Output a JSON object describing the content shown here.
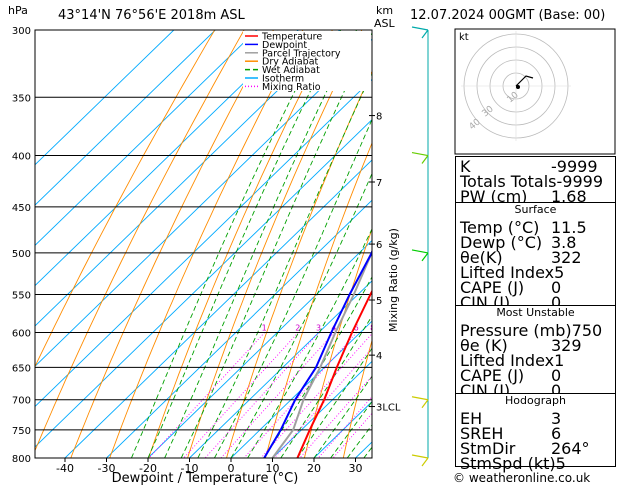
{
  "header": {
    "location": "43°14'N 76°56'E 2018m ASL",
    "hpa_label": "hPa",
    "km_label": "km",
    "asl_label": "ASL",
    "datetime": "12.07.2024 00GMT (Base: 00)"
  },
  "chart_data": {
    "type": "skew-t",
    "xlabel": "Dewpoint / Temperature (°C)",
    "ylabel_right": "Mixing Ratio (g/kg)",
    "pressure_levels": [
      300,
      350,
      400,
      450,
      500,
      550,
      600,
      650,
      700,
      750,
      800
    ],
    "pressure_range": [
      300,
      800
    ],
    "temperature_ticks": [
      -40,
      -30,
      -20,
      -10,
      0,
      10,
      20,
      30
    ],
    "km_ticks": [
      {
        "label": "8",
        "p": 365
      },
      {
        "label": "7",
        "p": 425
      },
      {
        "label": "6",
        "p": 490
      },
      {
        "label": "5",
        "p": 557
      },
      {
        "label": "4",
        "p": 632
      },
      {
        "label": "3LCL",
        "p": 711
      }
    ],
    "mixing_ratio_lines": [
      1,
      2,
      3,
      4,
      6,
      8,
      10,
      15,
      20,
      25
    ],
    "mixing_ratio_label_p": 600,
    "legend": [
      "Temperature",
      "Dewpoint",
      "Parcel Trajectory",
      "Dry Adiabat",
      "Wet Adiabat",
      "Isotherm",
      "Mixing Ratio"
    ],
    "legend_colors": [
      "#ff0000",
      "#0000ff",
      "#a0a0a0",
      "#ff8c00",
      "#00a000",
      "#00aaff",
      "#ff00ff"
    ],
    "temperature_profile": [
      {
        "p": 800,
        "t": 16
      },
      {
        "p": 750,
        "t": 12
      },
      {
        "p": 700,
        "t": 8
      },
      {
        "p": 650,
        "t": 3
      },
      {
        "p": 600,
        "t": -2
      },
      {
        "p": 550,
        "t": -7
      },
      {
        "p": 500,
        "t": -12
      },
      {
        "p": 450,
        "t": -19
      },
      {
        "p": 400,
        "t": -27
      },
      {
        "p": 350,
        "t": -37
      },
      {
        "p": 300,
        "t": -47
      }
    ],
    "dewpoint_profile": [
      {
        "p": 800,
        "t": 8
      },
      {
        "p": 750,
        "t": 5
      },
      {
        "p": 700,
        "t": 1
      },
      {
        "p": 650,
        "t": -2
      },
      {
        "p": 600,
        "t": -7
      },
      {
        "p": 550,
        "t": -12
      },
      {
        "p": 500,
        "t": -17
      },
      {
        "p": 460,
        "t": -23
      },
      {
        "p": 450,
        "t": -25
      },
      {
        "p": 400,
        "t": -30
      },
      {
        "p": 350,
        "t": -42
      },
      {
        "p": 300,
        "t": -52
      }
    ],
    "parcel_profile": [
      {
        "p": 800,
        "t": 10
      },
      {
        "p": 750,
        "t": 8
      },
      {
        "p": 700,
        "t": 3
      },
      {
        "p": 650,
        "t": -1
      },
      {
        "p": 600,
        "t": -6
      },
      {
        "p": 550,
        "t": -11
      },
      {
        "p": 500,
        "t": -17
      },
      {
        "p": 450,
        "t": -24
      },
      {
        "p": 400,
        "t": -32
      },
      {
        "p": 350,
        "t": -42
      },
      {
        "p": 300,
        "t": -53
      }
    ],
    "wind_barb_levels": [
      300,
      400,
      500,
      700,
      800
    ],
    "wind_barb_colors": [
      "#00aaaa",
      "#66cc00",
      "#00cc00",
      "#cccc00",
      "#cccc00"
    ]
  },
  "hodograph": {
    "unit": "kt",
    "ring_labels": [
      "40",
      "30",
      "10"
    ]
  },
  "indices": {
    "rows": [
      {
        "label": "K",
        "value": "-9999"
      },
      {
        "label": "Totals Totals",
        "value": "-9999"
      },
      {
        "label": "PW (cm)",
        "value": "1.68"
      }
    ]
  },
  "surface": {
    "title": "Surface",
    "rows": [
      {
        "label": "Temp (°C)",
        "value": "11.5"
      },
      {
        "label": "Dewp (°C)",
        "value": "3.8"
      },
      {
        "label": "θe(K)",
        "value": "322"
      },
      {
        "label": "Lifted Index",
        "value": "5"
      },
      {
        "label": "CAPE (J)",
        "value": "0"
      },
      {
        "label": "CIN (J)",
        "value": "0"
      }
    ]
  },
  "most_unstable": {
    "title": "Most Unstable",
    "rows": [
      {
        "label": "Pressure (mb)",
        "value": "750"
      },
      {
        "label": "θe (K)",
        "value": "329"
      },
      {
        "label": "Lifted Index",
        "value": "1"
      },
      {
        "label": "CAPE (J)",
        "value": "0"
      },
      {
        "label": "CIN (J)",
        "value": "0"
      }
    ]
  },
  "hodograph_table": {
    "title": "Hodograph",
    "rows": [
      {
        "label": "EH",
        "value": "3"
      },
      {
        "label": "SREH",
        "value": "6"
      },
      {
        "label": "StmDir",
        "value": "264°"
      },
      {
        "label": "StmSpd (kt)",
        "value": "5"
      }
    ]
  },
  "footer": {
    "copyright": "© weatheronline.co.uk"
  }
}
